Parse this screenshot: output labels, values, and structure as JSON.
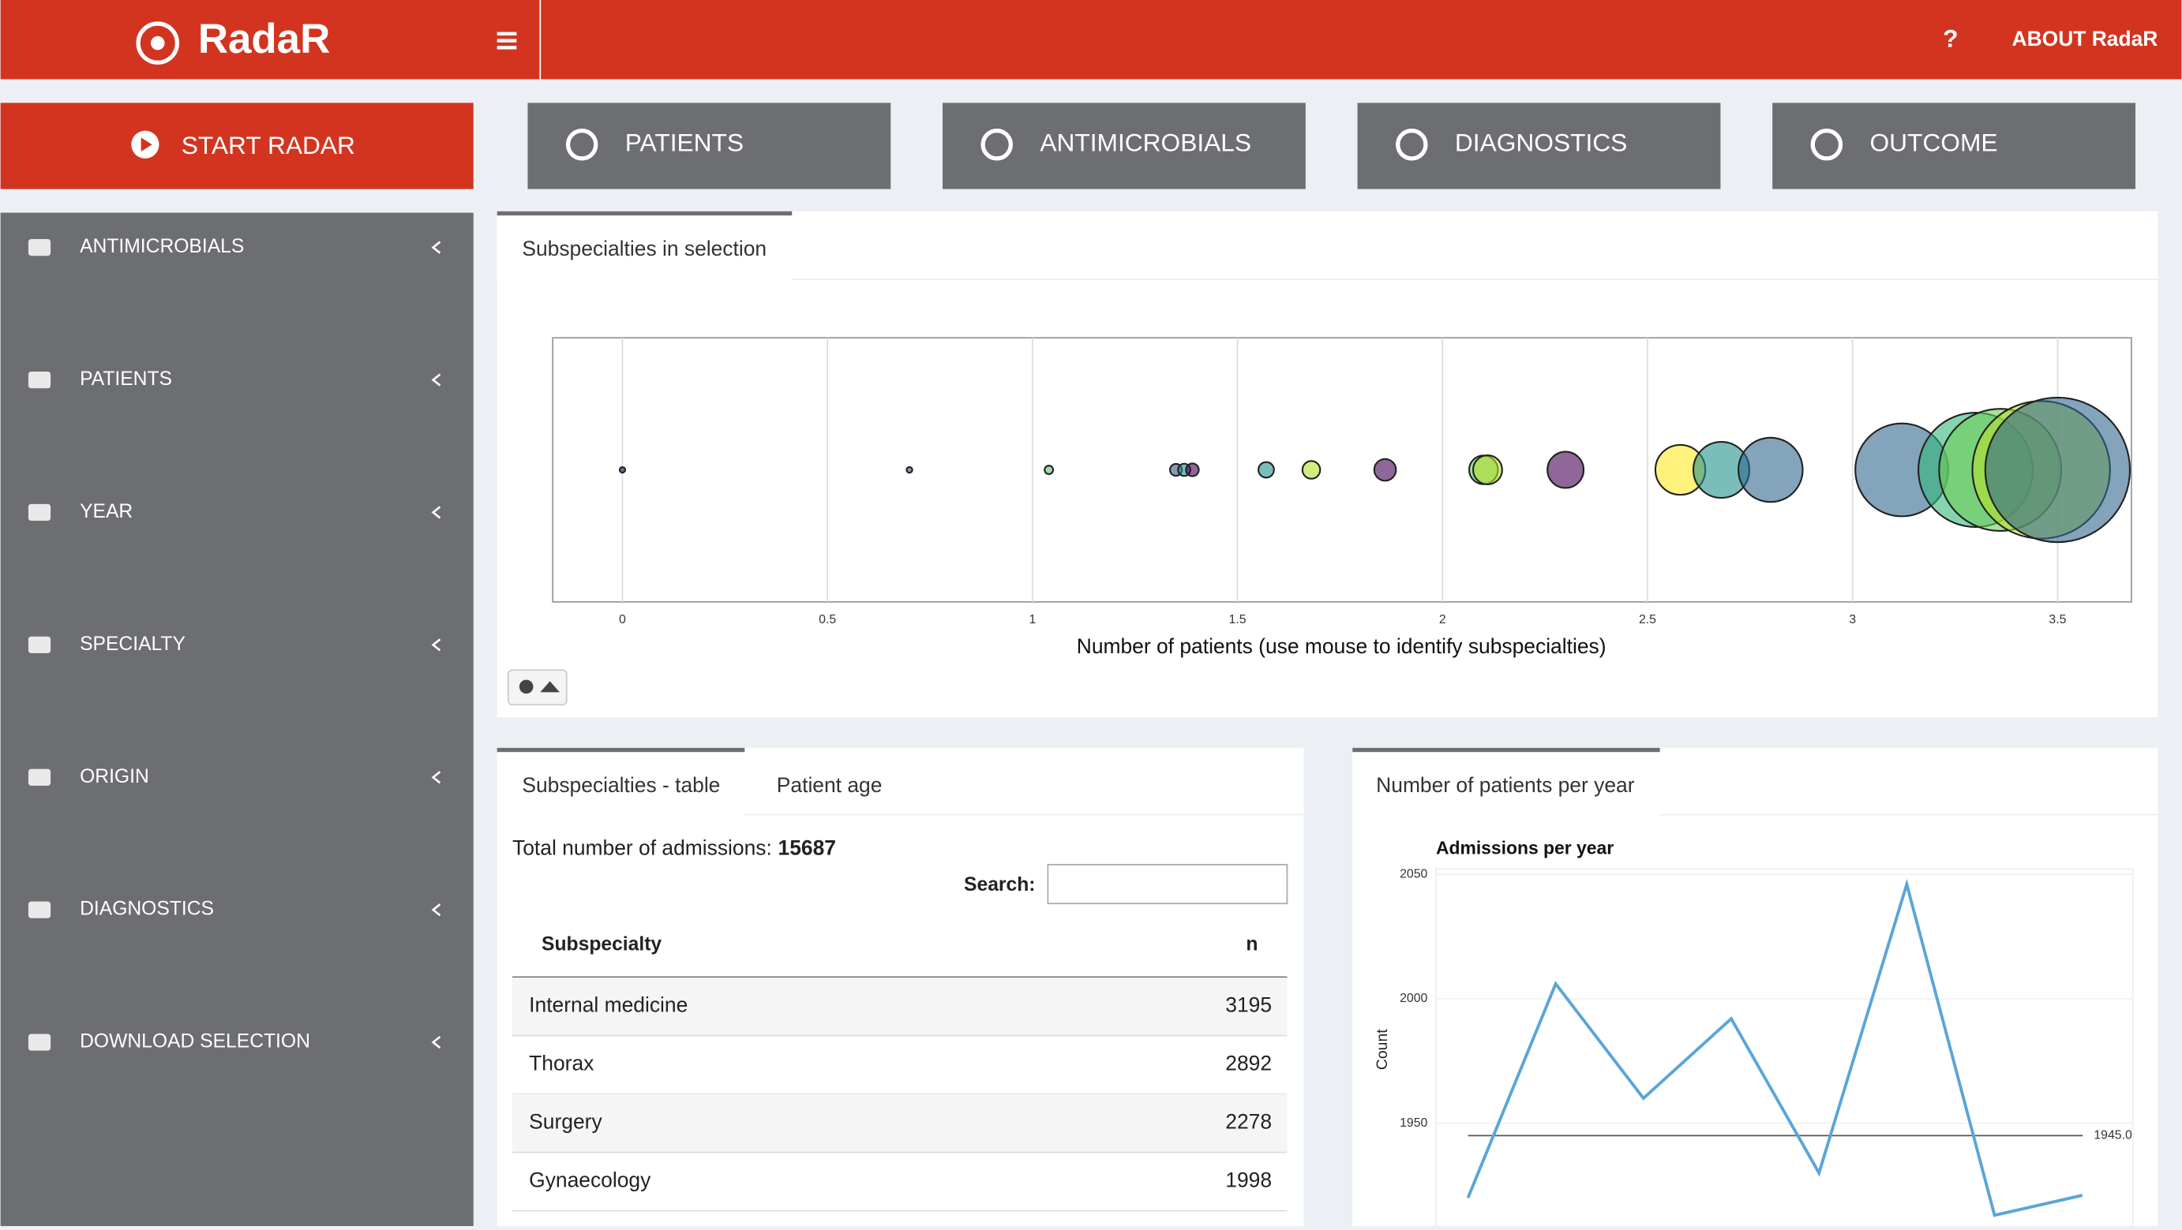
{
  "header": {
    "brand": "RadaR",
    "help": "?",
    "about": "ABOUT RadaR"
  },
  "start_button": "START RADAR",
  "nav_buttons": [
    "PATIENTS",
    "ANTIMICROBIALS",
    "DIAGNOSTICS",
    "OUTCOME"
  ],
  "sidebar": [
    "ANTIMICROBIALS",
    "PATIENTS",
    "YEAR",
    "SPECIALTY",
    "ORIGIN",
    "DIAGNOSTICS",
    "DOWNLOAD SELECTION"
  ],
  "top_panel": {
    "tab": "Subspecialties in selection"
  },
  "table_panel": {
    "tabs": [
      "Subspecialties - table",
      "Patient age"
    ],
    "total_label": "Total number of admissions:",
    "total": 15687,
    "search_label": "Search:",
    "columns": [
      "Subspecialty",
      "n"
    ],
    "rows": [
      [
        "Internal medicine",
        3195
      ],
      [
        "Thorax",
        2892
      ],
      [
        "Surgery",
        2278
      ],
      [
        "Gynaecology",
        1998
      ]
    ]
  },
  "line_panel": {
    "tab": "Number of patients per year"
  },
  "chart_data": [
    {
      "type": "bubble",
      "x_label": "Number of patients (use mouse to identify subspecialties)",
      "xlim": [
        -0.17,
        3.68
      ],
      "xticks": [
        0,
        0.5,
        1,
        1.5,
        2,
        2.5,
        3,
        3.5
      ],
      "grid": true,
      "x": [
        0,
        0.7,
        1.04,
        1.35,
        1.37,
        1.39,
        1.57,
        1.68,
        1.86,
        2.1,
        2.11,
        2.3,
        2.58,
        2.68,
        2.8,
        3.12,
        3.3,
        3.36,
        3.46,
        3.5
      ],
      "sizes": [
        1,
        5,
        11,
        22,
        23,
        25,
        37,
        48,
        72,
        126,
        129,
        200,
        380,
        479,
        631,
        1318,
        1998,
        2278,
        2892,
        3195
      ],
      "colors": [
        "#440154",
        "#3b528b",
        "#5ec962",
        "#3b528b",
        "#21918c",
        "#440154",
        "#21918c",
        "#b5de2b",
        "#440154",
        "#5ec962",
        "#b5de2b",
        "#440154",
        "#fde725",
        "#21918c",
        "#31688e",
        "#31688e",
        "#35b779",
        "#6ece58",
        "#b5de2b",
        "#31688e"
      ]
    },
    {
      "type": "line",
      "title": "Admissions per year",
      "y_label": "Count",
      "values": [
        1920,
        2006,
        1960,
        1992,
        1930,
        2046,
        1913,
        1921
      ],
      "color": "#5aa5d8",
      "ylim": [
        1910,
        2052
      ],
      "yticks": [
        1950,
        2000,
        2050
      ],
      "reference_line": {
        "value": 1945,
        "label": "1945.0"
      }
    }
  ]
}
